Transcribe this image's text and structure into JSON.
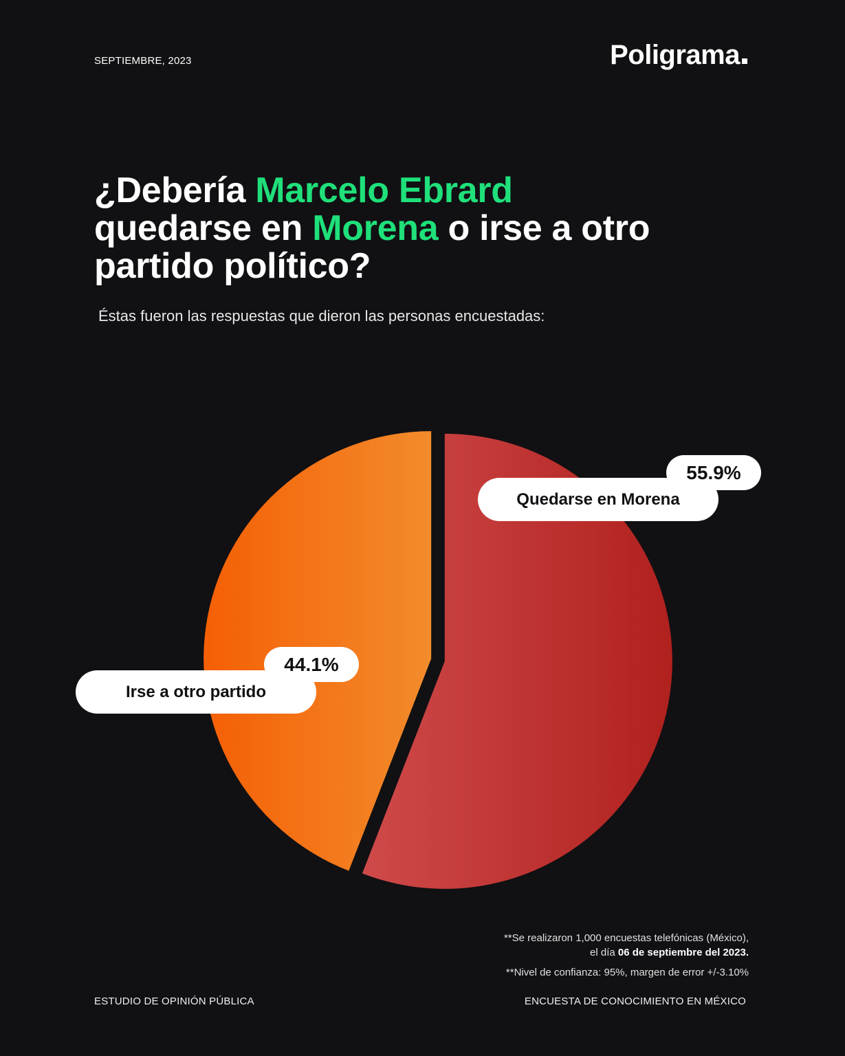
{
  "header": {
    "date": "SEPTIEMBRE, 2023",
    "logo": "Poligrama"
  },
  "title": {
    "part1": "¿Debería ",
    "highlight1": "Marcelo Ebrard",
    "part2": " quedarse en ",
    "highlight2": "Morena",
    "part3": " o irse a otro partido político?"
  },
  "subtitle": "Éstas fueron las respuestas que dieron las personas encuestadas:",
  "colors": {
    "background": "#111013",
    "highlight": "#1fe07a",
    "morena_start": "#cf4a4a",
    "morena_end": "#b0211e",
    "otro_start": "#f55f05",
    "otro_end": "#f28c2c"
  },
  "chart_data": {
    "type": "pie",
    "title": "¿Debería Marcelo Ebrard quedarse en Morena o irse a otro partido político?",
    "slices": [
      {
        "label": "Quedarse en Morena",
        "value": 55.9,
        "display": "55.9%"
      },
      {
        "label": "Irse a otro partido",
        "value": 44.1,
        "display": "44.1%"
      }
    ],
    "unit": "%"
  },
  "notes": {
    "line1": "**Se realizaron 1,000 encuestas telefónicas (México),",
    "line2_prefix": "el día ",
    "line2_bold": "06 de septiembre del 2023.",
    "line3": "**Nivel de confianza: 95%, margen de error +/-3.10%"
  },
  "footer": {
    "left": "ESTUDIO  DE OPINIÓN PÚBLICA",
    "right": "ENCUESTA DE CONOCIMIENTO EN MÉXICO"
  }
}
